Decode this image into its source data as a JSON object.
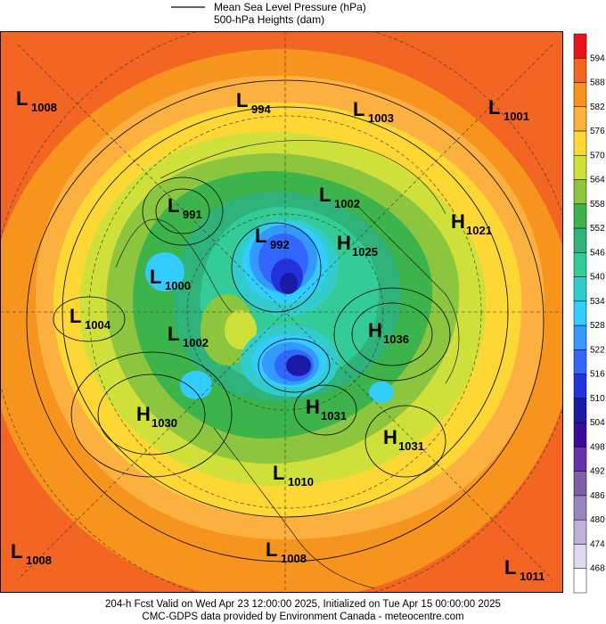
{
  "header": {
    "legend": [
      "Mean Sea Level Pressure (hPa)",
      "500-hPa Heights (dam)"
    ]
  },
  "colorbar": [
    {
      "label": "594",
      "color": "#e8141b"
    },
    {
      "label": "588",
      "color": "#f26522"
    },
    {
      "label": "582",
      "color": "#f7941d"
    },
    {
      "label": "576",
      "color": "#fbb040"
    },
    {
      "label": "570",
      "color": "#fdd835"
    },
    {
      "label": "564",
      "color": "#cfe03a"
    },
    {
      "label": "558",
      "color": "#8cc63f"
    },
    {
      "label": "552",
      "color": "#3cb44b"
    },
    {
      "label": "546",
      "color": "#2fb37a"
    },
    {
      "label": "540",
      "color": "#33cc99"
    },
    {
      "label": "534",
      "color": "#33cccc"
    },
    {
      "label": "528",
      "color": "#33ccff"
    },
    {
      "label": "522",
      "color": "#3399ff"
    },
    {
      "label": "516",
      "color": "#3366ff"
    },
    {
      "label": "510",
      "color": "#2233dd"
    },
    {
      "label": "504",
      "color": "#1a1aa6"
    },
    {
      "label": "498",
      "color": "#3a0a99"
    },
    {
      "label": "492",
      "color": "#6633aa"
    },
    {
      "label": "486",
      "color": "#7f5fa8"
    },
    {
      "label": "480",
      "color": "#9b85c0"
    },
    {
      "label": "474",
      "color": "#bfb0d8"
    },
    {
      "label": "468",
      "color": "#e0d8ee"
    }
  ],
  "pressure_centers": [
    {
      "kind": "L",
      "value": "1008"
    },
    {
      "kind": "L",
      "value": "994"
    },
    {
      "kind": "L",
      "value": "1003"
    },
    {
      "kind": "L",
      "value": "1001"
    },
    {
      "kind": "L",
      "value": "991"
    },
    {
      "kind": "L",
      "value": "1002"
    },
    {
      "kind": "H",
      "value": "1021"
    },
    {
      "kind": "L",
      "value": "992"
    },
    {
      "kind": "H",
      "value": "1025"
    },
    {
      "kind": "L",
      "value": "1000"
    },
    {
      "kind": "L",
      "value": "1004"
    },
    {
      "kind": "L",
      "value": "1002"
    },
    {
      "kind": "H",
      "value": "1036"
    },
    {
      "kind": "H",
      "value": "1030"
    },
    {
      "kind": "H",
      "value": "1031"
    },
    {
      "kind": "H",
      "value": "1031"
    },
    {
      "kind": "L",
      "value": "1010"
    },
    {
      "kind": "L",
      "value": "1008"
    },
    {
      "kind": "L",
      "value": "1008"
    },
    {
      "kind": "L",
      "value": "1011"
    }
  ],
  "footer": [
    "204-h Fcst Valid on Wed Apr 23 12:00:00 2025, Initialized on Tue Apr 15 00:00:00 2025",
    "CMC-GDPS data provided by Environment Canada - meteocentre.com"
  ]
}
